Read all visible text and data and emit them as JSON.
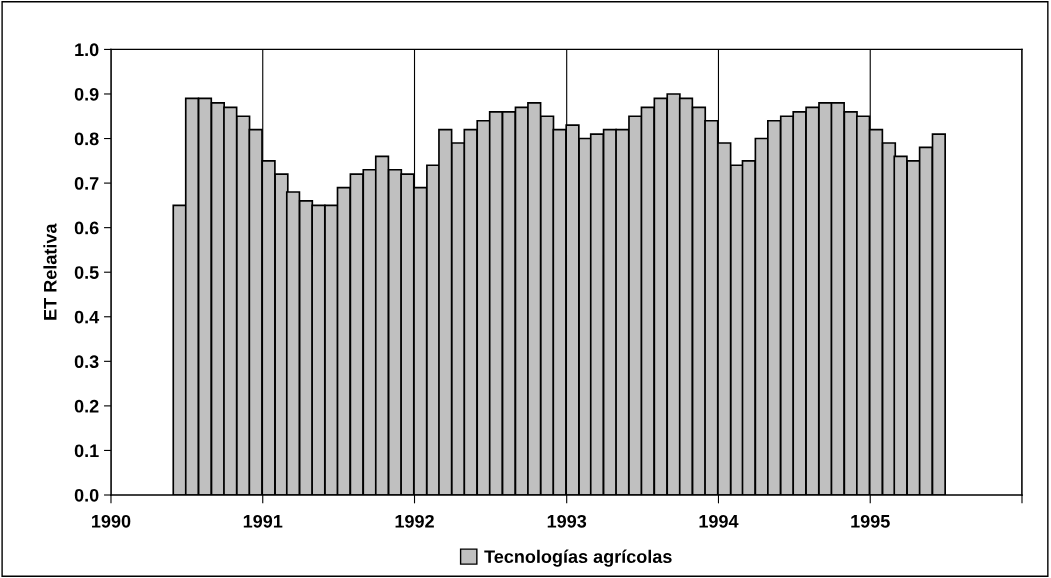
{
  "chart_data": {
    "type": "bar",
    "ylabel": "ET Relativa",
    "x": [
      "1990-06-15",
      "1990-07-15",
      "1990-08-15",
      "1990-09-15",
      "1990-10-15",
      "1990-11-15",
      "1990-12-15",
      "1991-01-15",
      "1991-02-15",
      "1991-03-15",
      "1991-04-15",
      "1991-05-15",
      "1991-06-15",
      "1991-07-15",
      "1991-08-15",
      "1991-09-15",
      "1991-10-15",
      "1991-11-15",
      "1991-12-15",
      "1992-01-15",
      "1992-02-15",
      "1992-03-15",
      "1992-04-15",
      "1992-05-15",
      "1992-06-15",
      "1992-07-15",
      "1992-08-15",
      "1992-09-15",
      "1992-10-15",
      "1992-11-15",
      "1992-12-15",
      "1993-01-15",
      "1993-02-15",
      "1993-03-15",
      "1993-04-15",
      "1993-05-15",
      "1993-06-15",
      "1993-07-15",
      "1993-08-15",
      "1993-09-15",
      "1993-10-15",
      "1993-11-15",
      "1993-12-15",
      "1994-01-15",
      "1994-02-15",
      "1994-03-15",
      "1994-04-15",
      "1994-05-15",
      "1994-06-15",
      "1994-07-15",
      "1994-08-15",
      "1994-09-15",
      "1994-10-15",
      "1994-11-15",
      "1994-12-15",
      "1995-01-15",
      "1995-02-15",
      "1995-03-15",
      "1995-04-15",
      "1995-05-15",
      "1995-06-15"
    ],
    "series": [
      {
        "name": "Tecnologías agrícolas",
        "color": "#c0c0c0",
        "values": [
          0.65,
          0.89,
          0.89,
          0.88,
          0.87,
          0.85,
          0.82,
          0.75,
          0.72,
          0.68,
          0.66,
          0.65,
          0.65,
          0.69,
          0.72,
          0.73,
          0.76,
          0.73,
          0.72,
          0.69,
          0.74,
          0.82,
          0.79,
          0.82,
          0.84,
          0.86,
          0.86,
          0.87,
          0.88,
          0.85,
          0.82,
          0.83,
          0.8,
          0.81,
          0.82,
          0.82,
          0.85,
          0.87,
          0.89,
          0.9,
          0.89,
          0.87,
          0.84,
          0.79,
          0.74,
          0.75,
          0.8,
          0.84,
          0.85,
          0.86,
          0.87,
          0.88,
          0.88,
          0.86,
          0.85,
          0.82,
          0.79,
          0.76,
          0.75,
          0.78,
          0.81
        ]
      }
    ],
    "xlim": [
      "1990",
      "1996"
    ],
    "xticks": [
      "1990",
      "1991",
      "1992",
      "1993",
      "1994",
      "1995",
      {
        "value": "1996",
        "label": null
      }
    ],
    "ylim": [
      0,
      1
    ],
    "yticks": [
      {
        "value": 0,
        "label": "0.0"
      },
      {
        "value": 0.1,
        "label": "0.1"
      },
      {
        "value": 0.2,
        "label": "0.2"
      },
      {
        "value": 0.3,
        "label": "0.3"
      },
      {
        "value": 0.4,
        "label": "0.4"
      },
      {
        "value": 0.5,
        "label": "0.5"
      },
      {
        "value": 0.6,
        "label": "0.6"
      },
      {
        "value": 0.7,
        "label": "0.7"
      },
      {
        "value": 0.8,
        "label": "0.8"
      },
      {
        "value": 0.9,
        "label": "0.9"
      },
      {
        "value": 1,
        "label": "1.0"
      }
    ],
    "grid": "x",
    "legend": "bottom"
  }
}
